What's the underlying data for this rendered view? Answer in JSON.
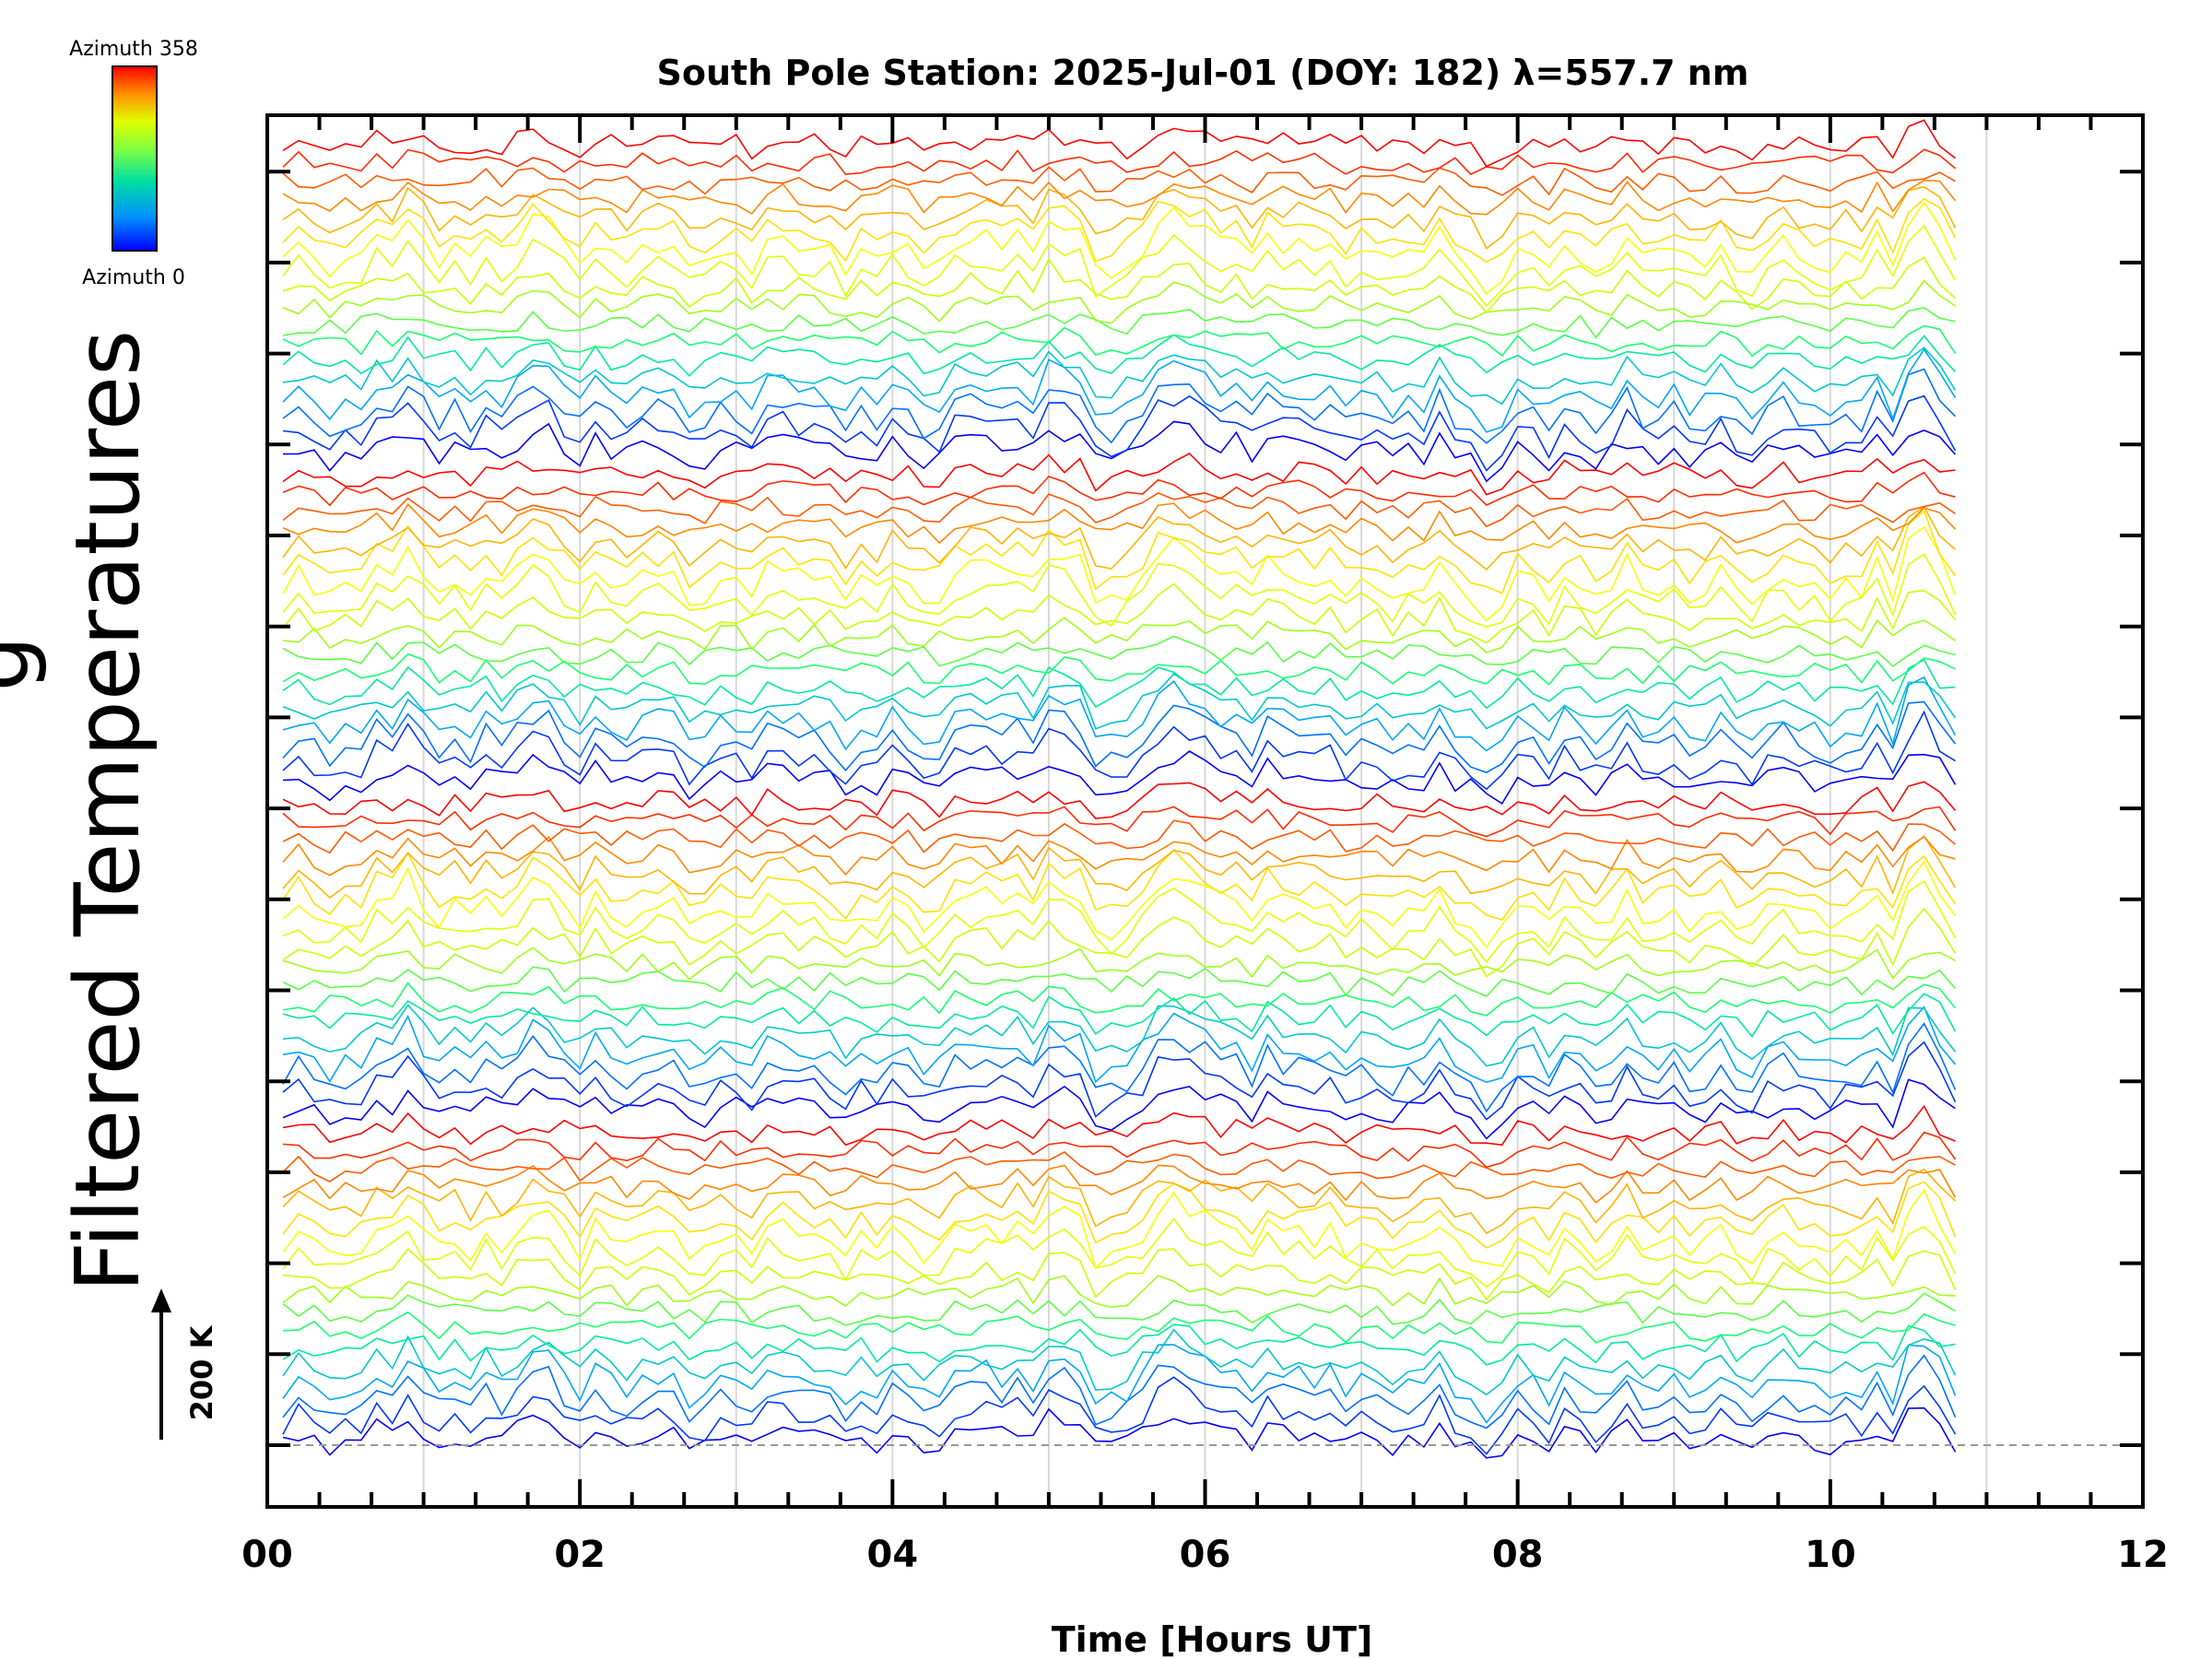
{
  "chart_data": {
    "type": "line",
    "title": "South Pole Station: 2025-Jul-01 (DOY: 182) λ=557.7 nm",
    "xlabel": "Time [Hours UT]",
    "ylabel": "Filtered Temperatures",
    "ylabel_partial": "g",
    "xlim": [
      0,
      12
    ],
    "x_ticks": [
      "00",
      "02",
      "04",
      "06",
      "08",
      "10",
      "12"
    ],
    "data_end_hour": 10.8,
    "grid": true,
    "scale_bar_label": "200 K",
    "colorbar": {
      "top_label": "Azimuth 358",
      "bottom_label": "Azimuth 0",
      "colormap": [
        "#0000ff",
        "#00a0ff",
        "#00ff80",
        "#c0ff00",
        "#ffff00",
        "#ff8000",
        "#ff0000"
      ]
    },
    "series_description_count": 72
  }
}
